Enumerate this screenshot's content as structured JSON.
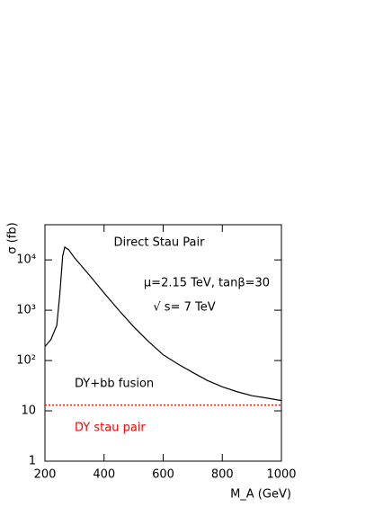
{
  "chart_data": {
    "type": "line",
    "log_y": true,
    "ylabel": "σ (fb)",
    "xlabel": "M_A (GeV)",
    "x": [
      200,
      220,
      240,
      250,
      260,
      267,
      280,
      300,
      350,
      400,
      450,
      500,
      550,
      600,
      650,
      700,
      750,
      800,
      850,
      900,
      950,
      1000
    ],
    "series": [
      {
        "name": "DY+bb fusion",
        "color": "#000000",
        "values": [
          190,
          260,
          500,
          2000,
          12000,
          18000,
          16000,
          11000,
          5000,
          2200,
          1000,
          470,
          240,
          130,
          85,
          58,
          40,
          30,
          24,
          20,
          18,
          16
        ]
      },
      {
        "name": "DY stau pair",
        "color": "#ff0000",
        "dashed": true,
        "x": [
          200,
          1000
        ],
        "values": [
          13,
          13
        ]
      }
    ],
    "annotations": [
      "Direct Stau Pair",
      "μ=2.15 TeV, tanβ=30",
      "√ s= 7 TeV"
    ],
    "xlim": [
      200,
      1000
    ],
    "xticks": [
      200,
      400,
      600,
      800,
      1000
    ],
    "ylim": [
      1,
      50000
    ],
    "yticks": [
      1,
      10,
      {
        "value": 100,
        "label": "10²"
      },
      {
        "value": 1000,
        "label": "10³"
      },
      {
        "value": 10000,
        "label": "10⁴"
      }
    ]
  }
}
